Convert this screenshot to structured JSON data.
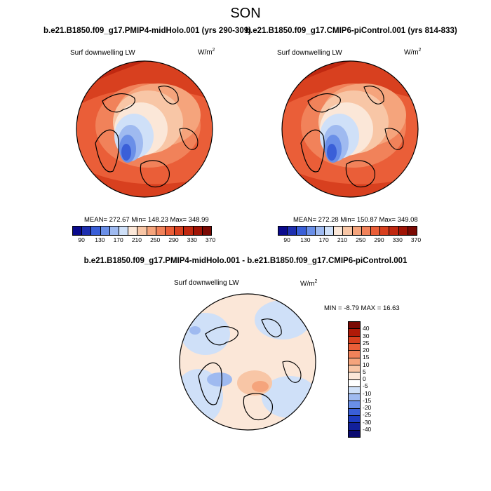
{
  "figure": {
    "title": "SON",
    "left_title": "b.e21.B1850.f09_g17.PMIP4-midHolo.001 (yrs 290-309)",
    "right_title": "b.e21.B1850.f09_g17.CMIP6-piControl.001 (yrs 814-833)",
    "diff_title": "b.e21.B1850.f09_g17.PMIP4-midHolo.001 - b.e21.B1850.f09_g17.CMIP6-piControl.001"
  },
  "panels": {
    "left": {
      "variable": "Surf downwelling LW",
      "units_base": "W/m",
      "units_exp": "2",
      "stats": "MEAN= 272.67  Min= 148.23  Max= 348.99"
    },
    "right": {
      "variable": "Surf downwelling LW",
      "units_base": "W/m",
      "units_exp": "2",
      "stats": "MEAN= 272.28  Min= 150.87  Max= 349.08"
    },
    "diff": {
      "variable": "Surf downwelling LW",
      "units_base": "W/m",
      "units_exp": "2",
      "stats": "MIN =  -8.79 MAX =  16.63"
    }
  },
  "colorbar_abs": {
    "colors": [
      "#0a0a8c",
      "#1e2fb0",
      "#3a5fd8",
      "#6a8fe8",
      "#9fbaf0",
      "#cfe0f8",
      "#fbe7d8",
      "#f8c6a6",
      "#f5a47c",
      "#f1825a",
      "#ea5e38",
      "#d8401f",
      "#c02810",
      "#a01406",
      "#7a0a04"
    ],
    "ticks": [
      "90",
      "130",
      "170",
      "210",
      "250",
      "290",
      "330",
      "370"
    ]
  },
  "colorbar_diff": {
    "colors": [
      "#7a0a04",
      "#b01a08",
      "#d8401f",
      "#ea5e38",
      "#f1825a",
      "#f5a47c",
      "#f8c6a6",
      "#fbe7d8",
      "#ffffff",
      "#cfe0f8",
      "#9fbaf0",
      "#6a8fe8",
      "#3a5fd8",
      "#1e3cc0",
      "#12209a",
      "#0a0a70"
    ],
    "ticks": [
      "40",
      "30",
      "25",
      "20",
      "15",
      "10",
      "5",
      "0",
      "-5",
      "-10",
      "-15",
      "-20",
      "-25",
      "-30",
      "-40"
    ]
  }
}
